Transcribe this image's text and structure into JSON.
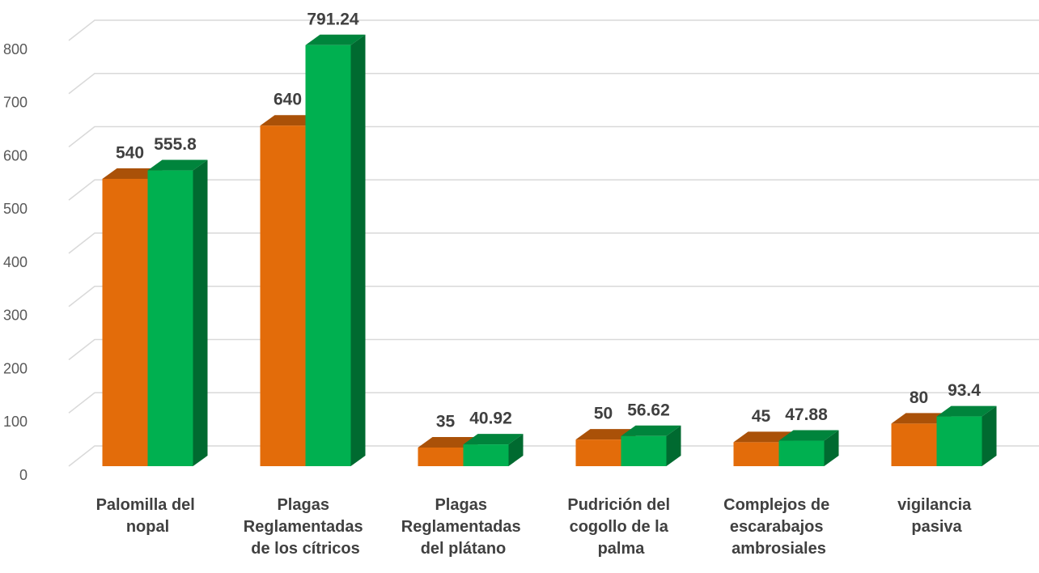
{
  "chart_data": {
    "type": "bar3d",
    "categories": [
      "Palomilla del nopal",
      "Plagas Reglamentadas de los cítricos",
      "Plagas Reglamentadas del plátano",
      "Pudrición del cogollo de la palma",
      "Complejos de escarabajos ambrosiales",
      "vigilancia pasiva"
    ],
    "series": [
      {
        "color": "#e36c0a",
        "values": [
          540,
          640,
          35,
          50,
          45,
          80
        ]
      },
      {
        "color": "#00b050",
        "values": [
          555.8,
          791.24,
          40.92,
          56.62,
          47.88,
          93.4
        ]
      }
    ],
    "ylim": [
      0,
      800
    ],
    "yticks": [
      0,
      100,
      200,
      300,
      400,
      500,
      600,
      700,
      800
    ],
    "grid": true
  }
}
